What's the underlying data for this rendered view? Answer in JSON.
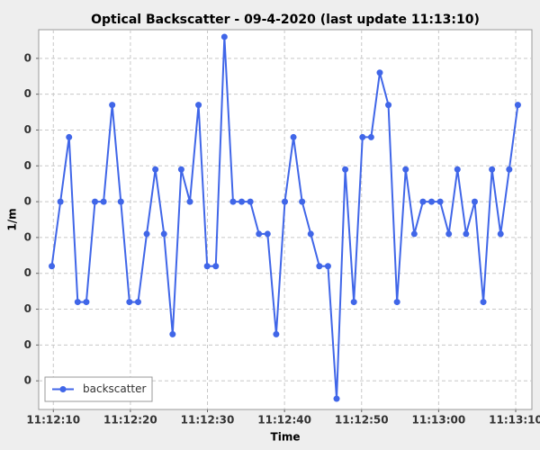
{
  "chart_data": {
    "type": "line",
    "title": "Optical Backscatter - 09-4-2020 (last update 11:13:10)",
    "x_label": "Time",
    "y_label": "1/m",
    "x": [
      40329.8,
      40330.92,
      40332.04,
      40333.16,
      40334.28,
      40335.4,
      40336.52,
      40337.64,
      40338.76,
      40339.88,
      40341,
      40342.12,
      40343.24,
      40344.36,
      40345.48,
      40346.6,
      40347.72,
      40348.84,
      40349.96,
      40351.08,
      40352.2,
      40353.32,
      40354.44,
      40355.56,
      40356.68,
      40357.8,
      40358.92,
      40360.04,
      40361.16,
      40362.28,
      40363.4,
      40364.52,
      40365.64,
      40366.76,
      40367.88,
      40369,
      40370.12,
      40371.24,
      40372.36,
      40373.48,
      40374.6,
      40375.72,
      40376.84,
      40377.96,
      40379.08,
      40380.2,
      40381.32,
      40382.44,
      40383.56,
      40384.68,
      40385.8,
      40386.92,
      40388.04,
      40389.16,
      40390.28
    ],
    "series": [
      {
        "name": "backscatter",
        "color": "#4066e8",
        "values": [
          0.042,
          0.06,
          0.078,
          0.032,
          0.032,
          0.06,
          0.06,
          0.087,
          0.06,
          0.032,
          0.032,
          0.051,
          0.069,
          0.051,
          0.023,
          0.069,
          0.06,
          0.087,
          0.042,
          0.042,
          0.106,
          0.06,
          0.06,
          0.06,
          0.051,
          0.051,
          0.023,
          0.06,
          0.078,
          0.06,
          0.051,
          0.042,
          0.042,
          0.005,
          0.069,
          0.032,
          0.078,
          0.078,
          0.096,
          0.087,
          0.032,
          0.069,
          0.051,
          0.06,
          0.06,
          0.06,
          0.051,
          0.069,
          0.051,
          0.06,
          0.032,
          0.069,
          0.051,
          0.069,
          0.087
        ]
      }
    ],
    "xlim": [
      40328.1,
      40392.1
    ],
    "xticks": [
      {
        "value": 40330,
        "label": "11:12:10"
      },
      {
        "value": 40340,
        "label": "11:12:20"
      },
      {
        "value": 40350,
        "label": "11:12:30"
      },
      {
        "value": 40360,
        "label": "11:12:40"
      },
      {
        "value": 40370,
        "label": "11:12:50"
      },
      {
        "value": 40380,
        "label": "11:13:00"
      },
      {
        "value": 40390,
        "label": "11:13:10"
      }
    ],
    "ylim": [
      0.002,
      0.108
    ],
    "yticks": [
      {
        "value": 0.01,
        "label": "0"
      },
      {
        "value": 0.02,
        "label": "0"
      },
      {
        "value": 0.03,
        "label": "0"
      },
      {
        "value": 0.04,
        "label": "0"
      },
      {
        "value": 0.05,
        "label": "0"
      },
      {
        "value": 0.06,
        "label": "0"
      },
      {
        "value": 0.07,
        "label": "0"
      },
      {
        "value": 0.08,
        "label": "0"
      },
      {
        "value": 0.09,
        "label": "0"
      },
      {
        "value": 0.1,
        "label": "0"
      }
    ],
    "grid": true,
    "legend": "lower left"
  }
}
